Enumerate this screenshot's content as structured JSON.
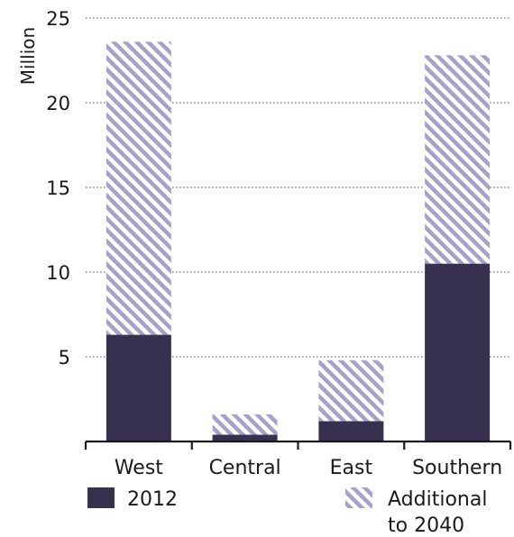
{
  "chart_data": {
    "type": "bar",
    "stacked": true,
    "categories": [
      "West",
      "Central",
      "East",
      "Southern"
    ],
    "series": [
      {
        "name": "2012",
        "values": [
          6.3,
          0.4,
          1.2,
          10.5
        ],
        "color": "#37314f",
        "pattern": "solid"
      },
      {
        "name": "Additional to 2040",
        "values": [
          17.3,
          1.2,
          3.6,
          12.3
        ],
        "color": "#a7a1c8",
        "pattern": "diagonal-hatch"
      }
    ],
    "ylabel": "Million",
    "ylim": [
      0,
      25
    ],
    "yticks": [
      "5",
      "10",
      "15",
      "20",
      "25"
    ],
    "grid": "horizontal-dotted",
    "legend": {
      "position": "bottom",
      "items": [
        {
          "lines": [
            "2012"
          ]
        },
        {
          "lines": [
            "Additional",
            "to 2040"
          ]
        }
      ]
    }
  }
}
